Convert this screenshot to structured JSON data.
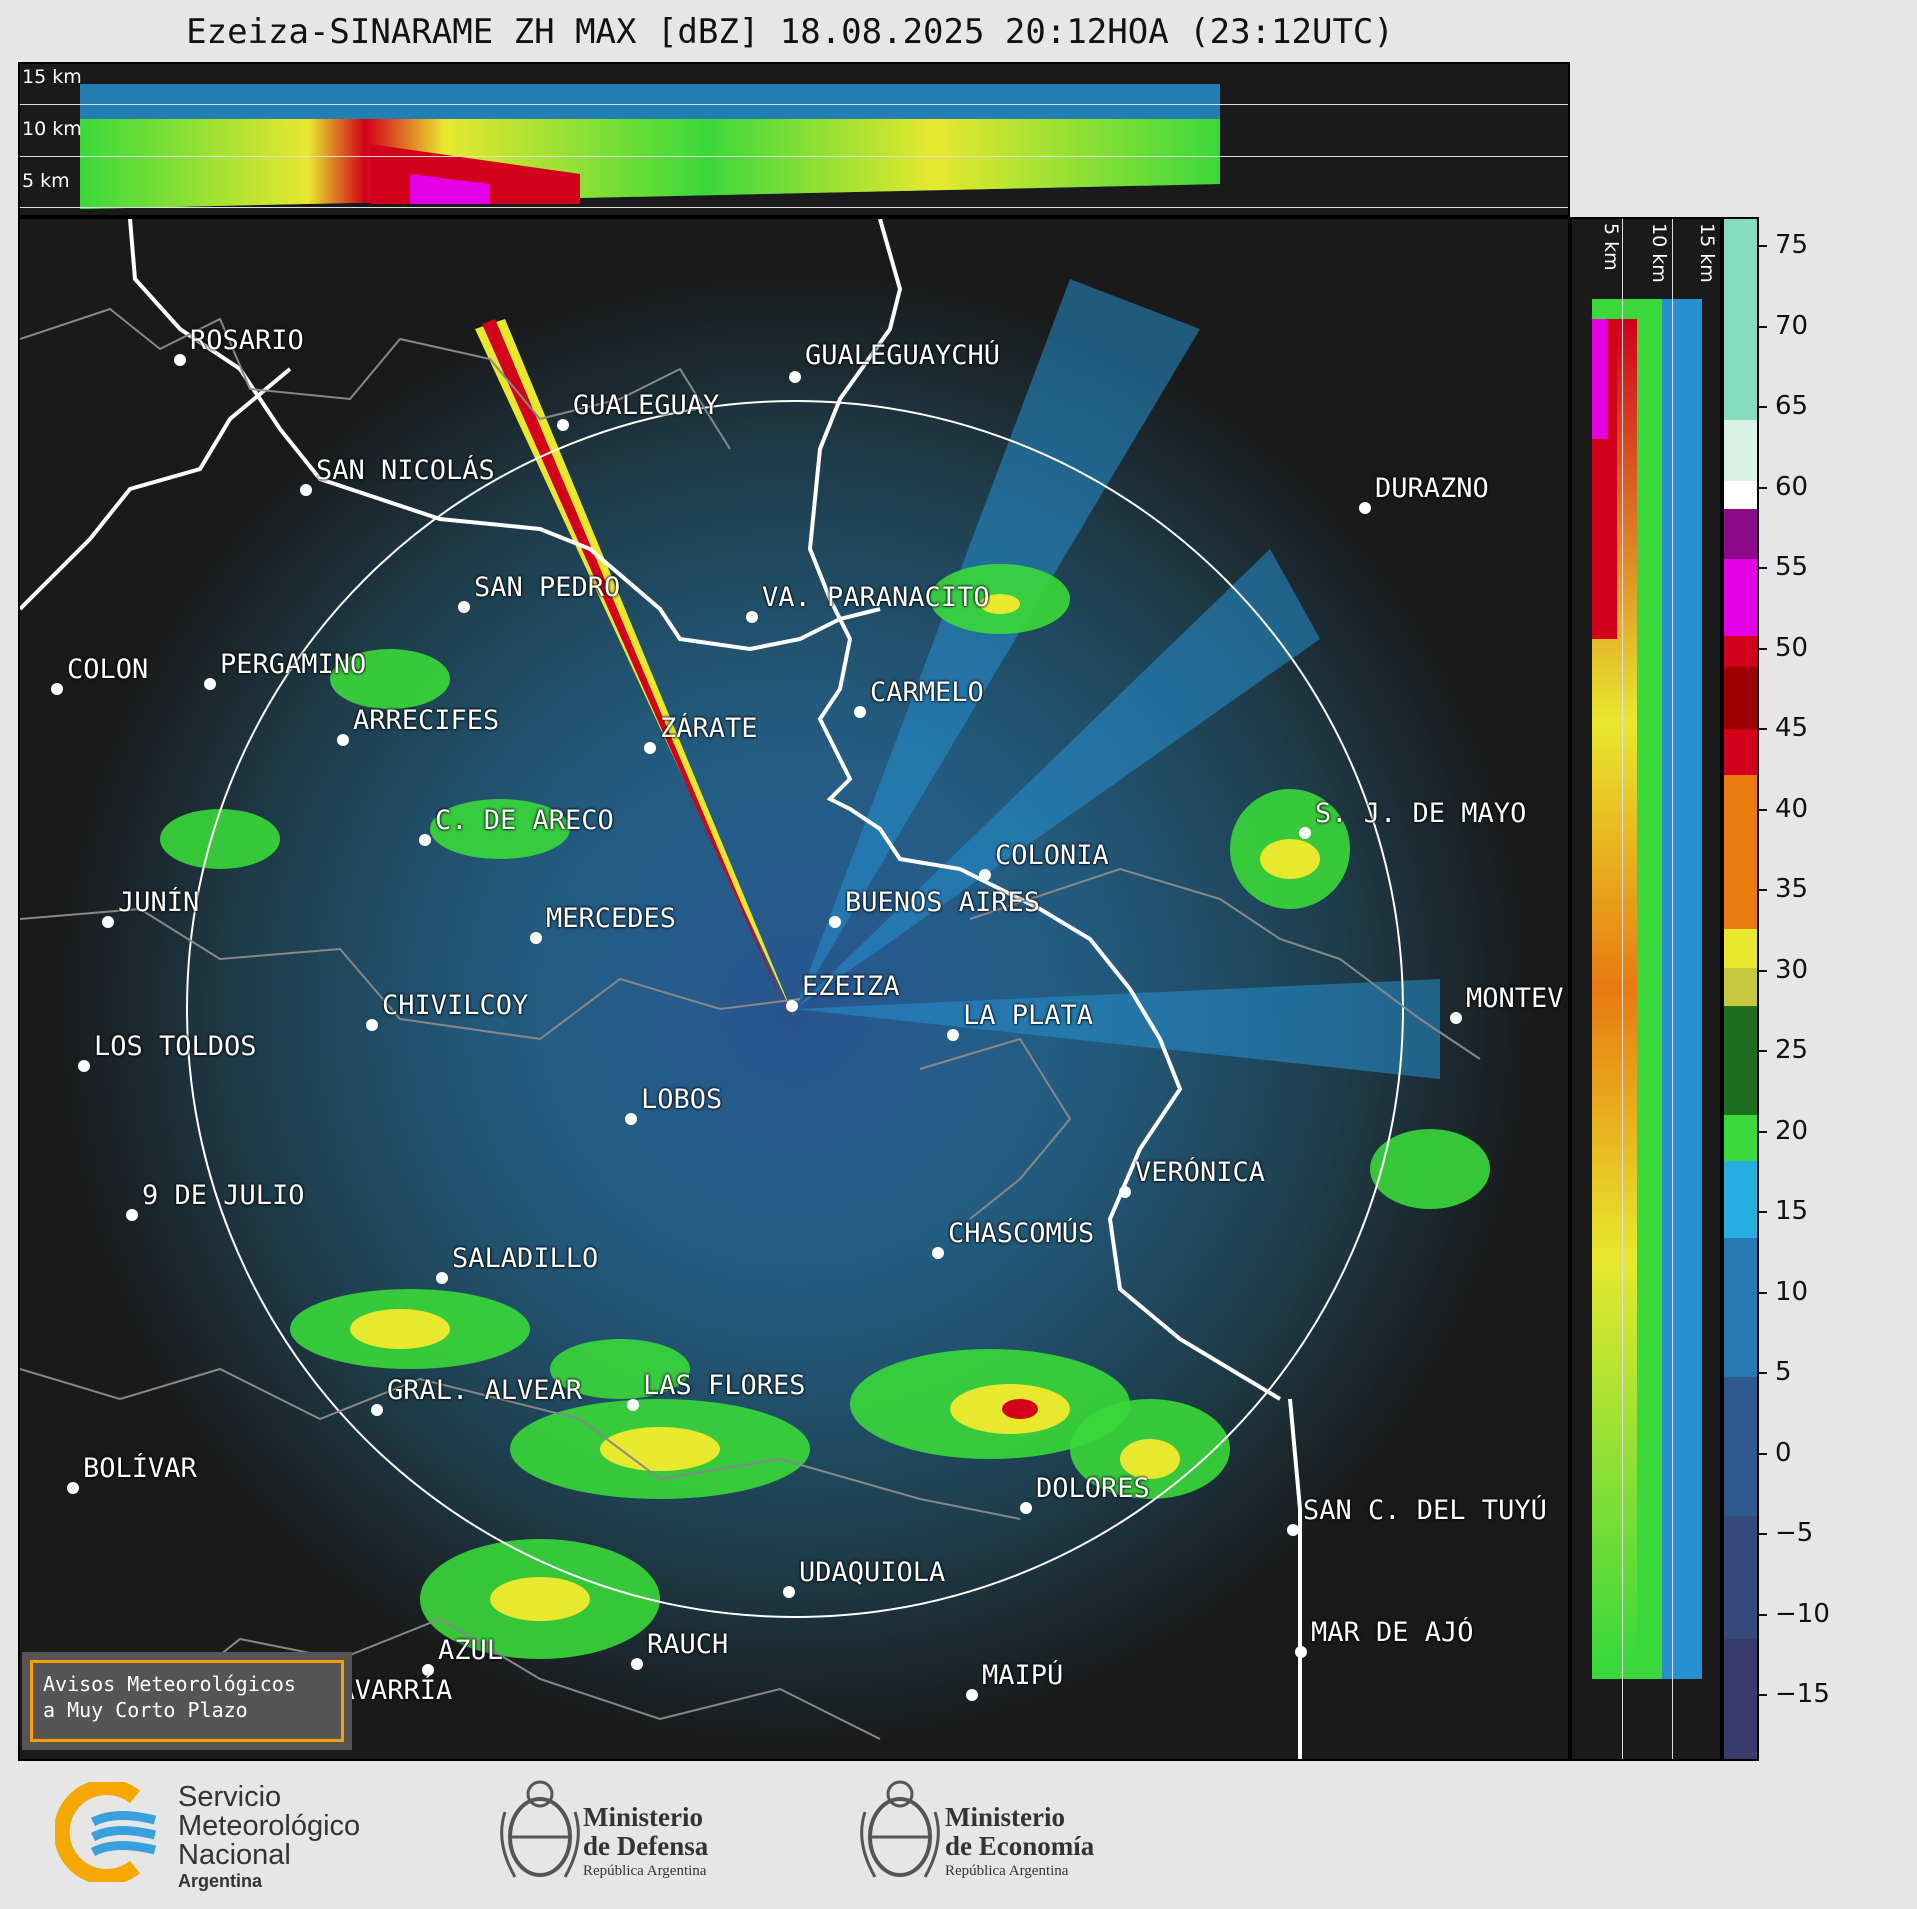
{
  "title": "Ezeiza-SINARAME ZH MAX [dBZ] 18.08.2025 20:12HOA (23:12UTC)",
  "top_panel": {
    "altitude_labels": [
      "15 km",
      "10 km",
      "5 km"
    ]
  },
  "side_panel": {
    "altitude_labels": [
      "5 km",
      "10 km",
      "15 km"
    ]
  },
  "colorbar": {
    "unit": "dBZ",
    "ticks": [
      "75",
      "70",
      "65",
      "60",
      "55",
      "50",
      "45",
      "40",
      "35",
      "30",
      "25",
      "20",
      "15",
      "10",
      "5",
      "0",
      "−5",
      "−10",
      "−15"
    ],
    "colors": {
      "high_cyan": "#85dcbf",
      "pale": "#d8f2e6",
      "white": "#ffffff",
      "purple": "#8a0a8a",
      "magenta": "#e400e4",
      "red": "#d2001a",
      "dark_red": "#9c0000",
      "orange": "#e97a10",
      "yellow": "#e8e82e",
      "dark_green": "#1f6e1f",
      "green": "#3ad83a",
      "cyan_blue": "#26aee0",
      "blue": "#2878b4",
      "navy": "#3a3c6e"
    }
  },
  "map": {
    "range_ring": true,
    "cities": [
      {
        "name": "ROSARIO"
      },
      {
        "name": "GUALEGUAYCHÚ"
      },
      {
        "name": "GUALEGUAY"
      },
      {
        "name": "SAN NICOLÁS"
      },
      {
        "name": "DURAZNO"
      },
      {
        "name": "SAN PEDRO"
      },
      {
        "name": "VA. PARANACITO"
      },
      {
        "name": "COLON"
      },
      {
        "name": "PERGAMINO"
      },
      {
        "name": "CARMELO"
      },
      {
        "name": "ARRECIFES"
      },
      {
        "name": "ZÁRATE"
      },
      {
        "name": "C. DE ARECO"
      },
      {
        "name": "S. J. DE MAYO"
      },
      {
        "name": "COLONIA"
      },
      {
        "name": "JUNÍN"
      },
      {
        "name": "BUENOS AIRES"
      },
      {
        "name": "MERCEDES"
      },
      {
        "name": "EZEIZA"
      },
      {
        "name": "MONTEVIDEO"
      },
      {
        "name": "CHIVILCOY"
      },
      {
        "name": "LA PLATA"
      },
      {
        "name": "LOS TOLDOS"
      },
      {
        "name": "LOBOS"
      },
      {
        "name": "VERÓNICA"
      },
      {
        "name": "9 DE JULIO"
      },
      {
        "name": "CHASCOMÚS"
      },
      {
        "name": "SALADILLO"
      },
      {
        "name": "GRAL. ALVEAR"
      },
      {
        "name": "LAS FLORES"
      },
      {
        "name": "BOLÍVAR"
      },
      {
        "name": "DOLORES"
      },
      {
        "name": "SAN C. DEL TUYÚ"
      },
      {
        "name": "UDAQUIOLA"
      },
      {
        "name": "MAR DE AJÓ"
      },
      {
        "name": "AZUL"
      },
      {
        "name": "RAUCH"
      },
      {
        "name": "OLAVARRÍA"
      },
      {
        "name": "MAIPÚ"
      }
    ]
  },
  "alert_box": {
    "line1": "Avisos Meteorológicos",
    "line2": "a Muy Corto Plazo"
  },
  "footer": {
    "smn": {
      "line1": "Servicio",
      "line2": "Meteorológico",
      "line3": "Nacional",
      "line4": "Argentina"
    },
    "defensa": {
      "line1": "Ministerio",
      "line2": "de Defensa",
      "line3": "República Argentina"
    },
    "economia": {
      "line1": "Ministerio",
      "line2": "de Economía",
      "line3": "República Argentina"
    }
  }
}
